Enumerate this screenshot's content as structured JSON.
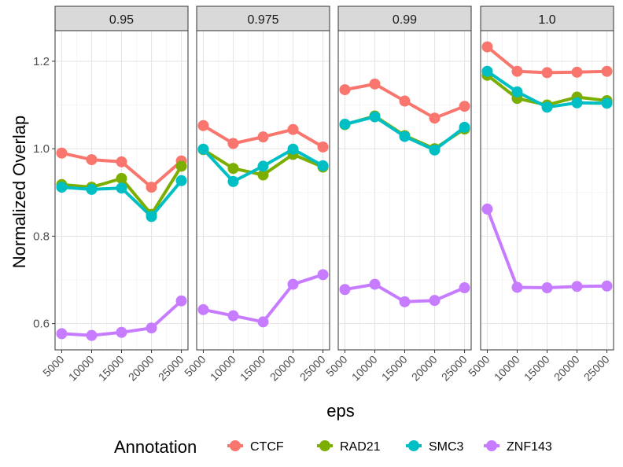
{
  "chart_data": {
    "type": "line",
    "xlabel": "eps",
    "ylabel": "Normalized Overlap",
    "x": [
      5000,
      10000,
      15000,
      20000,
      25000
    ],
    "x_tick_labels": [
      "5000",
      "10000",
      "15000",
      "20000",
      "25000"
    ],
    "ylim": [
      0.54,
      1.27
    ],
    "y_ticks": [
      0.6,
      0.8,
      1.0,
      1.2
    ],
    "y_tick_labels": [
      "0.6",
      "0.8",
      "1.0",
      "1.2"
    ],
    "grid": true,
    "legend": {
      "title": "Annotation",
      "position": "bottom"
    },
    "colors": {
      "CTCF": "#F8766D",
      "RAD21": "#7CAE00",
      "SMC3": "#00BFC4",
      "ZNF143": "#C77CFF"
    },
    "panels": [
      {
        "label": "0.95",
        "series": [
          {
            "name": "CTCF",
            "values": [
              0.99,
              0.975,
              0.97,
              0.912,
              0.972
            ]
          },
          {
            "name": "RAD21",
            "values": [
              0.918,
              0.912,
              0.932,
              0.85,
              0.96
            ]
          },
          {
            "name": "SMC3",
            "values": [
              0.912,
              0.907,
              0.91,
              0.845,
              0.927
            ]
          },
          {
            "name": "ZNF143",
            "values": [
              0.577,
              0.573,
              0.58,
              0.59,
              0.652
            ]
          }
        ]
      },
      {
        "label": "0.975",
        "series": [
          {
            "name": "CTCF",
            "values": [
              1.053,
              1.012,
              1.027,
              1.044,
              1.004
            ]
          },
          {
            "name": "RAD21",
            "values": [
              0.998,
              0.955,
              0.94,
              0.987,
              0.958
            ]
          },
          {
            "name": "SMC3",
            "values": [
              0.999,
              0.925,
              0.96,
              0.999,
              0.961
            ]
          },
          {
            "name": "ZNF143",
            "values": [
              0.632,
              0.618,
              0.604,
              0.69,
              0.712
            ]
          }
        ]
      },
      {
        "label": "0.99",
        "series": [
          {
            "name": "CTCF",
            "values": [
              1.135,
              1.148,
              1.109,
              1.07,
              1.097
            ]
          },
          {
            "name": "RAD21",
            "values": [
              1.055,
              1.075,
              1.03,
              1.0,
              1.045
            ]
          },
          {
            "name": "SMC3",
            "values": [
              1.056,
              1.073,
              1.028,
              0.997,
              1.049
            ]
          },
          {
            "name": "ZNF143",
            "values": [
              0.678,
              0.69,
              0.65,
              0.653,
              0.682
            ]
          }
        ]
      },
      {
        "label": "1.0",
        "series": [
          {
            "name": "CTCF",
            "values": [
              1.233,
              1.177,
              1.174,
              1.175,
              1.177
            ]
          },
          {
            "name": "RAD21",
            "values": [
              1.168,
              1.115,
              1.1,
              1.118,
              1.11
            ]
          },
          {
            "name": "SMC3",
            "values": [
              1.177,
              1.13,
              1.095,
              1.105,
              1.104
            ]
          },
          {
            "name": "ZNF143",
            "values": [
              0.862,
              0.683,
              0.682,
              0.685,
              0.686
            ]
          }
        ]
      }
    ]
  }
}
